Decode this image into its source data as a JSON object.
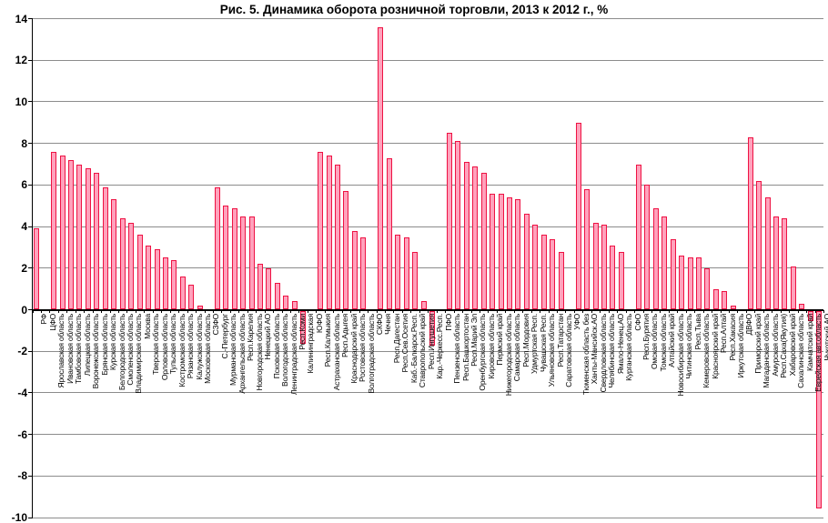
{
  "chart_data": {
    "type": "bar",
    "title": "Рис. 5. Динамика оборота розничной торговли, 2013 к 2012 г., %",
    "xlabel": "",
    "ylabel": "",
    "ylim": [
      -10,
      14
    ],
    "ytick_step": 2,
    "grid": true,
    "legend": "none",
    "bar_fill": "#ffa2bc",
    "bar_stroke": "#ee1243",
    "gridline_color": "#8c8c8c",
    "note": "null value = federal district separator label without a bar",
    "categories": [
      "РФ",
      "ЦФО",
      "Ярославская область",
      "Ивановская область",
      "Тамбовская область",
      "Липецкая область",
      "Воронежская область",
      "Брянская область",
      "Курская область",
      "Белгородская область",
      "Смоленская область",
      "Владимирская область",
      "Москва",
      "Тверская область",
      "Орловская область",
      "Тульская область",
      "Костромская область",
      "Рязанская область",
      "Калужская область",
      "Московская область",
      "СЗФО",
      "С.-Петербург",
      "Мурманская область",
      "Архангельская область",
      "Респ.Карелия",
      "Новгородская область",
      "Ненецкий АО",
      "Псковская область",
      "Вологодская область",
      "Ленинградская область",
      "Респ.Коми",
      "Калининградская",
      "ЮФО",
      "Респ.Калмыкия",
      "Астраханская область",
      "Респ.Адыгея",
      "Краснодарский край",
      "Ростовская область",
      "Волгоградская область",
      "СКФО",
      "Чечня",
      "Респ.Дагестан",
      "Респ.Сев.Осетия",
      "Каб.-Балкарск.Респ.",
      "Ставропольский край",
      "Респ.Ингушетия",
      "Кар.-Черкесс.Респ.",
      "ПФО",
      "Пензенская область",
      "Респ.Башкортостан",
      "Респ.Марий Эл",
      "Оренбургская область",
      "Кировская область",
      "Пермский край",
      "Нижегородская область",
      "Самарская область",
      "Респ.Мордовия",
      "Удмуртская Респ.",
      "Чувашская Респ.",
      "Ульяновская область",
      "Респ.Татарстан",
      "Саратовская область",
      "УФО",
      "Тюменская область без",
      "Ханты-Мансийск.АО",
      "Свердловская область",
      "Челябинская область",
      "Ямало-Ненец.АО",
      "Курганская область",
      "СФО",
      "Респ.Бурятия",
      "Омская область",
      "Томская область",
      "Алтайский край",
      "Новосибирская область",
      "Читинская область",
      "Респ.Тыва",
      "Кемеровская область",
      "Красноярский край",
      "Респ.Алтай",
      "Респ.Хакасия",
      "Иркутская область",
      "ДВФО",
      "Приморский край",
      "Магаданская область",
      "Амурская область",
      "Респ.Саха(Якутия)",
      "Хабаровский край",
      "Сахалинская область",
      "Камчатский край",
      "Еврейская авт.область",
      "Чукотский АО"
    ],
    "values": [
      3.9,
      null,
      7.6,
      7.4,
      7.2,
      7.0,
      6.8,
      6.6,
      5.9,
      5.3,
      4.4,
      4.2,
      3.6,
      3.1,
      2.9,
      2.5,
      2.4,
      1.6,
      1.2,
      0.2,
      null,
      5.9,
      5.0,
      4.9,
      4.5,
      4.5,
      2.2,
      2.0,
      1.3,
      0.7,
      0.4,
      -1.6,
      null,
      7.6,
      7.4,
      7.0,
      5.7,
      3.8,
      3.5,
      null,
      13.6,
      7.3,
      3.6,
      3.5,
      2.8,
      0.4,
      -1.7,
      null,
      8.5,
      8.1,
      7.1,
      6.9,
      6.6,
      5.6,
      5.6,
      5.4,
      5.3,
      4.6,
      4.1,
      3.6,
      3.4,
      2.8,
      null,
      9.0,
      5.8,
      4.2,
      4.1,
      3.1,
      2.8,
      null,
      7.0,
      6.0,
      4.9,
      4.5,
      3.4,
      2.6,
      2.5,
      2.5,
      2.0,
      1.0,
      0.9,
      0.2,
      null,
      8.3,
      6.2,
      5.4,
      4.5,
      4.4,
      2.1,
      0.3,
      -0.5,
      -9.5
    ]
  }
}
